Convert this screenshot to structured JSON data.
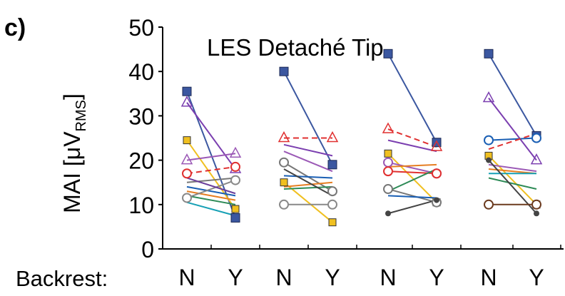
{
  "panel_label": "c)",
  "chart_data": {
    "type": "line",
    "title": "LES Detaché Tip",
    "ylabel_main": "MAI [μV",
    "ylabel_sub": "RMS",
    "ylabel_close": "]",
    "xlabel_prefix": "Backrest:",
    "categories": [
      "N",
      "Y",
      "N",
      "Y",
      "N",
      "Y",
      "N",
      "Y"
    ],
    "ylim": [
      0,
      50
    ],
    "yticks": [
      0,
      10,
      20,
      30,
      40,
      50
    ],
    "grid": false,
    "legend": "none",
    "pairs": [
      {
        "lines": [
          {
            "color": "#3b57a0",
            "dash": false,
            "marker": "box",
            "values": [
              35.5,
              7
            ]
          },
          {
            "color": "#7b3fb0",
            "dash": false,
            "marker": "triangle",
            "values": [
              33,
              18
            ]
          },
          {
            "color": "#f0c020",
            "dash": false,
            "marker": "square",
            "values": [
              24.5,
              9
            ]
          },
          {
            "color": "#9b59b6",
            "dash": false,
            "marker": "triangle",
            "values": [
              20,
              21.5
            ]
          },
          {
            "color": "#e03030",
            "dash": true,
            "marker": "circle",
            "values": [
              17,
              18.5
            ]
          },
          {
            "color": "#777777",
            "dash": false,
            "marker": "none",
            "values": [
              15,
              16
            ]
          },
          {
            "color": "#1a5fb4",
            "dash": false,
            "marker": "none",
            "values": [
              14,
              12
            ]
          },
          {
            "color": "#e67e22",
            "dash": false,
            "marker": "none",
            "values": [
              13,
              11
            ]
          },
          {
            "color": "#2e8b57",
            "dash": false,
            "marker": "none",
            "values": [
              12,
              10
            ]
          },
          {
            "color": "#888888",
            "dash": false,
            "marker": "circle",
            "values": [
              11.5,
              15.5
            ]
          },
          {
            "color": "#16a0b5",
            "dash": false,
            "marker": "none",
            "values": [
              10.5,
              7.5
            ]
          },
          {
            "color": "#6a3d9a",
            "dash": false,
            "marker": "none",
            "values": [
              16,
              12.5
            ]
          }
        ]
      },
      {
        "lines": [
          {
            "color": "#3b57a0",
            "dash": false,
            "marker": "box",
            "values": [
              40,
              19
            ]
          },
          {
            "color": "#e03030",
            "dash": true,
            "marker": "triangle",
            "values": [
              25,
              25
            ]
          },
          {
            "color": "#7b3fb0",
            "dash": false,
            "marker": "none",
            "values": [
              23.5,
              21
            ]
          },
          {
            "color": "#9b59b6",
            "dash": false,
            "marker": "none",
            "values": [
              22,
              17.5
            ]
          },
          {
            "color": "#777777",
            "dash": false,
            "marker": "circle",
            "values": [
              19.5,
              13
            ]
          },
          {
            "color": "#f0c020",
            "dash": false,
            "marker": "square",
            "values": [
              15,
              6
            ]
          },
          {
            "color": "#e67e22",
            "dash": false,
            "marker": "none",
            "values": [
              14,
              15
            ]
          },
          {
            "color": "#2e8b57",
            "dash": false,
            "marker": "none",
            "values": [
              13.5,
              14
            ]
          },
          {
            "color": "#888888",
            "dash": false,
            "marker": "circle",
            "values": [
              10,
              10
            ]
          },
          {
            "color": "#1a5fb4",
            "dash": false,
            "marker": "none",
            "values": [
              16.5,
              16
            ]
          },
          {
            "color": "#444444",
            "dash": false,
            "marker": "none",
            "values": [
              18,
              12
            ]
          }
        ]
      },
      {
        "lines": [
          {
            "color": "#3b57a0",
            "dash": false,
            "marker": "box",
            "values": [
              44,
              24
            ]
          },
          {
            "color": "#e03030",
            "dash": true,
            "marker": "triangle",
            "values": [
              27,
              23
            ]
          },
          {
            "color": "#7b3fb0",
            "dash": false,
            "marker": "none",
            "values": [
              24.5,
              22
            ]
          },
          {
            "color": "#f0c020",
            "dash": false,
            "marker": "square",
            "values": [
              21.5,
              10.5
            ]
          },
          {
            "color": "#9b59b6",
            "dash": false,
            "marker": "circle",
            "values": [
              19.5,
              17
            ]
          },
          {
            "color": "#e03030",
            "dash": false,
            "marker": "circle",
            "values": [
              17.5,
              17
            ]
          },
          {
            "color": "#777777",
            "dash": false,
            "marker": "circle",
            "values": [
              13.5,
              10.5
            ]
          },
          {
            "color": "#2e8b57",
            "dash": false,
            "marker": "none",
            "values": [
              13,
              18
            ]
          },
          {
            "color": "#e67e22",
            "dash": false,
            "marker": "none",
            "values": [
              18.5,
              19
            ]
          },
          {
            "color": "#444444",
            "dash": false,
            "marker": "dot",
            "values": [
              8,
              11
            ]
          },
          {
            "color": "#1a5fb4",
            "dash": false,
            "marker": "none",
            "values": [
              12,
              11.5
            ]
          }
        ]
      },
      {
        "lines": [
          {
            "color": "#3b57a0",
            "dash": false,
            "marker": "box",
            "values": [
              44,
              25.5
            ]
          },
          {
            "color": "#7b3fb0",
            "dash": false,
            "marker": "triangle",
            "values": [
              34,
              20
            ]
          },
          {
            "color": "#1a5fb4",
            "dash": false,
            "marker": "circle",
            "values": [
              24.5,
              25
            ]
          },
          {
            "color": "#e03030",
            "dash": true,
            "marker": "none",
            "values": [
              22.5,
              26
            ]
          },
          {
            "color": "#f0c020",
            "dash": false,
            "marker": "square",
            "values": [
              21,
              10
            ]
          },
          {
            "color": "#9b59b6",
            "dash": false,
            "marker": "none",
            "values": [
              19,
              17.5
            ]
          },
          {
            "color": "#e67e22",
            "dash": false,
            "marker": "none",
            "values": [
              18,
              17
            ]
          },
          {
            "color": "#16a0b5",
            "dash": false,
            "marker": "none",
            "values": [
              17,
              17
            ]
          },
          {
            "color": "#2e8b57",
            "dash": false,
            "marker": "none",
            "values": [
              16,
              13.5
            ]
          },
          {
            "color": "#444444",
            "dash": false,
            "marker": "dot",
            "values": [
              20,
              8
            ]
          },
          {
            "color": "#6b3a1e",
            "dash": false,
            "marker": "circle",
            "values": [
              10,
              10
            ]
          }
        ]
      }
    ]
  }
}
